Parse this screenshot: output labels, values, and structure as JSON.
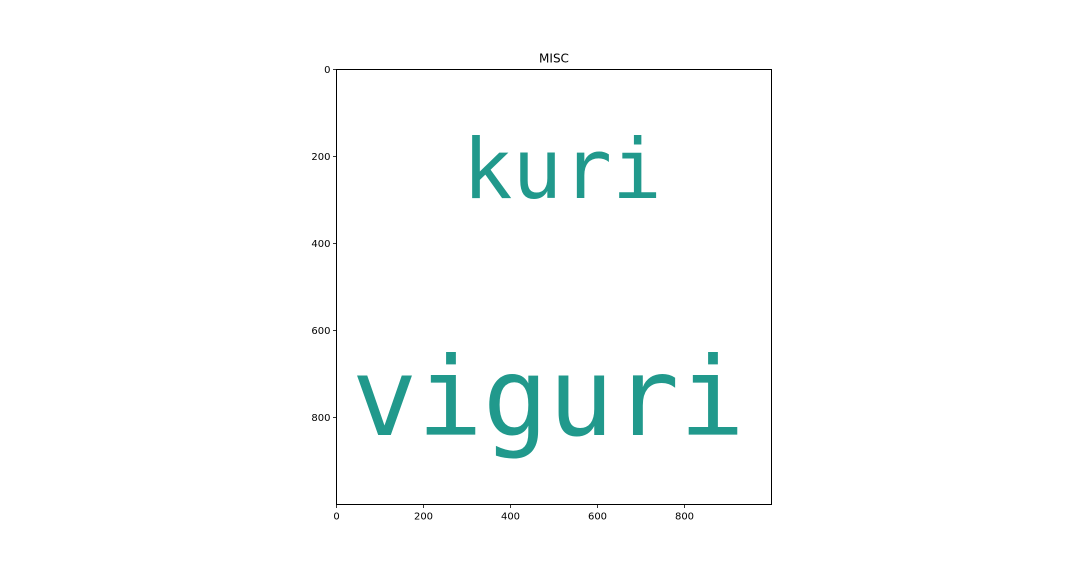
{
  "chart_data": {
    "type": "wordcloud",
    "title": "MISC",
    "xlabel": "",
    "ylabel": "",
    "xlim": [
      0,
      1000
    ],
    "ylim": [
      1000,
      0
    ],
    "xticks": [
      0,
      200,
      400,
      600,
      800
    ],
    "yticks": [
      0,
      200,
      400,
      600,
      800
    ],
    "grid": false,
    "word_color": "#21998c",
    "words": [
      {
        "text": "kuri",
        "x": 290,
        "y": 295,
        "size": 190
      },
      {
        "text": "viguri",
        "x": 35,
        "y": 840,
        "size": 250
      }
    ]
  }
}
